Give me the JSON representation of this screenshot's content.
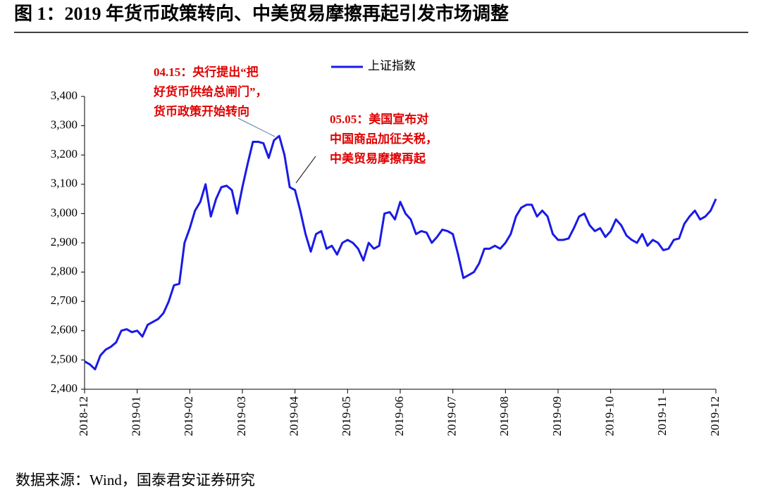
{
  "chart_data": {
    "type": "line",
    "title": "图 1：2019 年货币政策转向、中美贸易摩擦再起引发市场调整",
    "source": "数据来源：Wind，国泰君安证券研究",
    "xticks": [
      "2018-12",
      "2019-01",
      "2019-02",
      "2019-03",
      "2019-04",
      "2019-05",
      "2019-06",
      "2019-07",
      "2019-08",
      "2019-09",
      "2019-10",
      "2019-11",
      "2019-12"
    ],
    "ylim": [
      2400,
      3400
    ],
    "yticks": [
      {
        "value": 2400,
        "label": "2,400"
      },
      {
        "value": 2500,
        "label": "2,500"
      },
      {
        "value": 2600,
        "label": "2,600"
      },
      {
        "value": 2700,
        "label": "2,700"
      },
      {
        "value": 2800,
        "label": "2,800"
      },
      {
        "value": 2900,
        "label": "2,900"
      },
      {
        "value": 3000,
        "label": "3,000"
      },
      {
        "value": 3100,
        "label": "3,100"
      },
      {
        "value": 3200,
        "label": "3,200"
      },
      {
        "value": 3300,
        "label": "3,300"
      },
      {
        "value": 3400,
        "label": "3,400"
      }
    ],
    "legend": "top",
    "series": [
      {
        "name": "上证指数",
        "color": "#1a1ae6",
        "values": [
          2495,
          2485,
          2468,
          2515,
          2535,
          2545,
          2560,
          2600,
          2605,
          2595,
          2600,
          2580,
          2620,
          2630,
          2640,
          2660,
          2700,
          2755,
          2760,
          2900,
          2950,
          3010,
          3040,
          3100,
          2990,
          3050,
          3090,
          3095,
          3080,
          3000,
          3090,
          3170,
          3245,
          3245,
          3240,
          3190,
          3250,
          3265,
          3200,
          3090,
          3080,
          3010,
          2930,
          2870,
          2930,
          2940,
          2880,
          2890,
          2860,
          2900,
          2910,
          2900,
          2880,
          2840,
          2900,
          2880,
          2890,
          3000,
          3005,
          2980,
          3040,
          3000,
          2980,
          2930,
          2940,
          2935,
          2900,
          2920,
          2945,
          2940,
          2930,
          2860,
          2780,
          2790,
          2800,
          2830,
          2880,
          2880,
          2890,
          2880,
          2900,
          2930,
          2990,
          3020,
          3030,
          3030,
          2990,
          3010,
          2990,
          2930,
          2910,
          2910,
          2915,
          2950,
          2990,
          3000,
          2960,
          2940,
          2950,
          2920,
          2940,
          2980,
          2960,
          2925,
          2910,
          2900,
          2930,
          2890,
          2910,
          2900,
          2875,
          2880,
          2910,
          2915,
          2965,
          2990,
          3010,
          2980,
          2990,
          3010,
          3050
        ]
      }
    ],
    "annotations": [
      {
        "lines": [
          "04.15：央行提出“把",
          "好货币供给总闸门”，",
          "货币政策开始转向"
        ]
      },
      {
        "lines": [
          "05.05：美国宣布对",
          "中国商品加征关税，",
          "中美贸易摩擦再起"
        ]
      }
    ]
  }
}
